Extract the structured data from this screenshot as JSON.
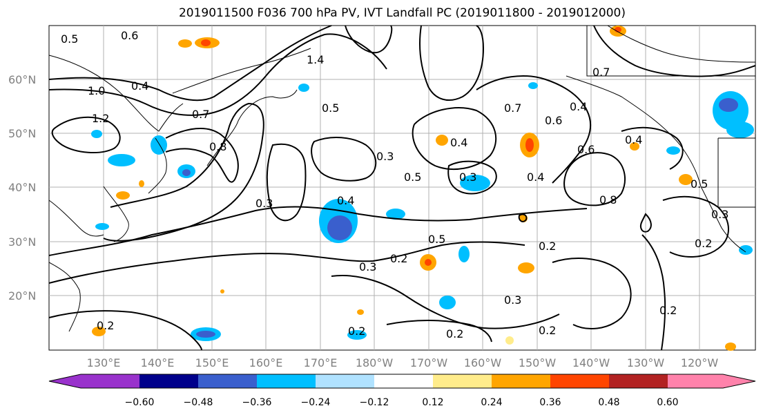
{
  "title": "2019011500 F036 700 hPa PV, IVT Landfall PC (2019011800 - 2019012000)",
  "lat_labels": [
    "60°N",
    "50°N",
    "40°N",
    "30°N",
    "20°N"
  ],
  "lon_labels": [
    "130°E",
    "140°E",
    "150°E",
    "160°E",
    "170°E",
    "180°W",
    "170°W",
    "160°W",
    "150°W",
    "140°W",
    "130°W",
    "120°W"
  ],
  "colorbar": {
    "colors": [
      "#9932cc",
      "#00008b",
      "#3a5fcd",
      "#00bfff",
      "#b0e2ff",
      "#ffffff",
      "#ffec8b",
      "#ffa500",
      "#ff4500",
      "#b22222",
      "#ff82ab"
    ],
    "tick_labels": [
      "−0.60",
      "−0.48",
      "−0.36",
      "−0.24",
      "−0.12",
      "0.12",
      "0.24",
      "0.36",
      "0.48",
      "0.60"
    ]
  },
  "contour_labels": [
    "0.5",
    "0.6",
    "1.4",
    "1.2",
    "1.0",
    "0.4",
    "0.7",
    "0.8",
    "0.5",
    "0.3",
    "0.4",
    "0.3",
    "0.5",
    "0.2",
    "0.3",
    "0.2",
    "0.2",
    "0.2",
    "0.3",
    "0.2",
    "0.2",
    "0.4",
    "0.7",
    "0.6",
    "0.4",
    "0.3",
    "0.4",
    "0.5",
    "0.6",
    "0.8",
    "0.7",
    "0.2",
    "0.3",
    "0.5",
    "0.4",
    "0.2"
  ]
}
